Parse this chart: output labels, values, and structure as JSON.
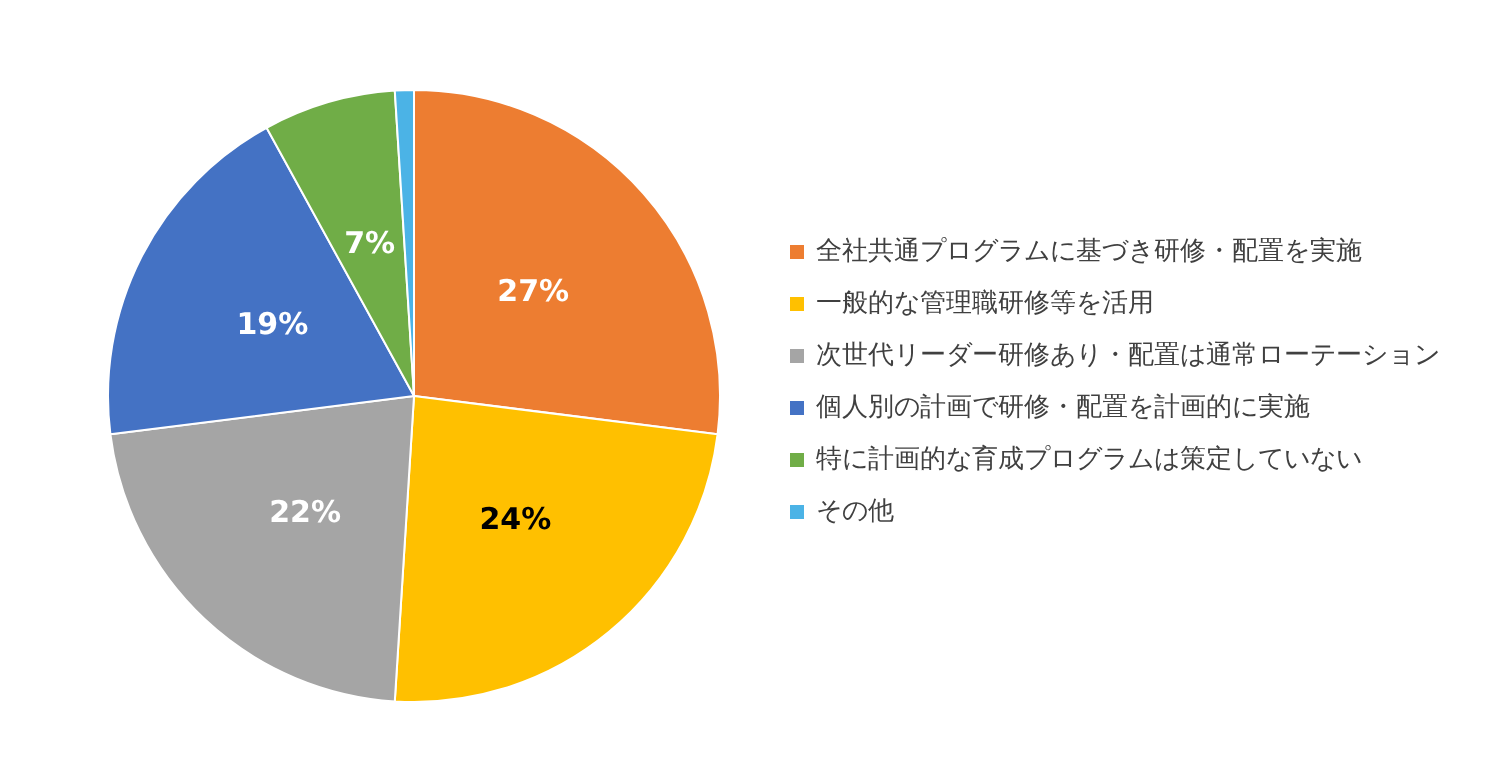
{
  "chart_data": {
    "type": "pie",
    "categories": [
      "全社共通プログラムに基づき研修・配置を実施",
      "一般的な管理職研修等を活用",
      "次世代リーダー研修あり・配置は通常ローテーション",
      "個人別の計画で研修・配置を計画的に実施",
      "特に計画的な育成プログラムは策定していない",
      "その他"
    ],
    "values": [
      27,
      24,
      22,
      19,
      7,
      1
    ],
    "colors": [
      "#ed7d31",
      "#ffc000",
      "#a5a5a5",
      "#4472c4",
      "#70ad47",
      "#4bb3e6"
    ],
    "value_labels": [
      "27%",
      "24%",
      "22%",
      "19%",
      "7%",
      null
    ],
    "legend": "right"
  }
}
